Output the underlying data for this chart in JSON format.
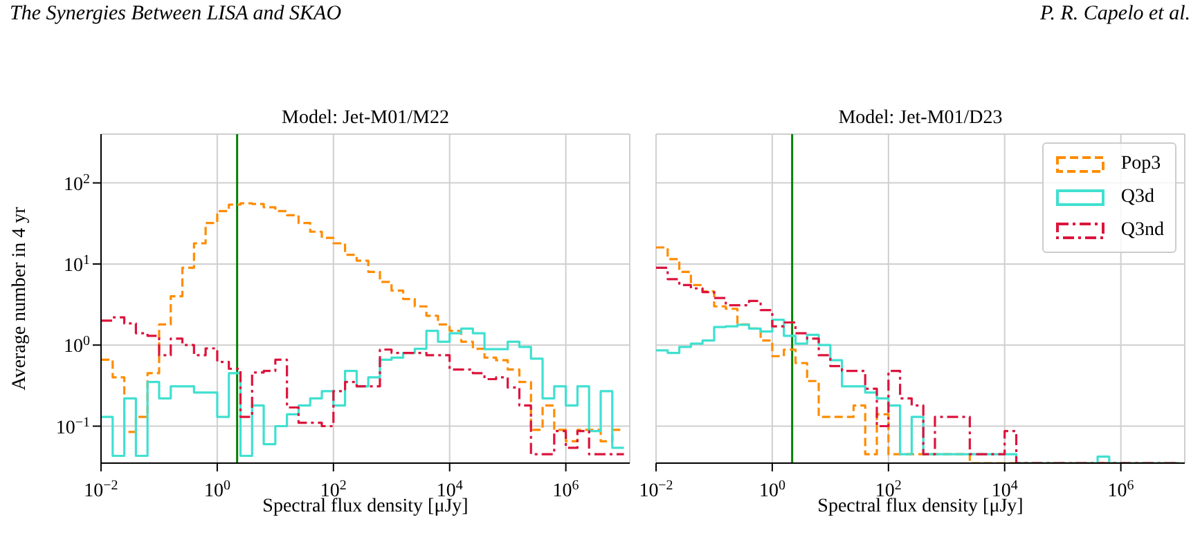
{
  "chart_data": [
    {
      "type": "histogram",
      "title": "Model: Jet-M01/M22",
      "xlabel": "Spectral flux density [μJy]",
      "ylabel": "Average number in 4 yr",
      "annotations": [
        "The Synergies Between LISA and SKAO"
      ],
      "bins": [
        0.01,
        0.01585,
        0.02512,
        0.03981,
        0.0631,
        0.1,
        0.1585,
        0.2512,
        0.3981,
        0.631,
        1,
        1.585,
        2.512,
        3.981,
        6.31,
        10,
        15.85,
        25.12,
        39.81,
        63.1,
        100,
        158.5,
        251.2,
        398.1,
        631,
        1000,
        1585,
        2512,
        3981,
        6310,
        10000,
        15850,
        25120,
        39810,
        63100,
        100000,
        158500,
        251200,
        398100,
        631000,
        1000000,
        1585000,
        2512000,
        3981000,
        6310000,
        10000000
      ],
      "series": [
        {
          "color": "#ff8c00",
          "line_style": "dashed",
          "values": [
            0.66,
            0.4,
            0.085,
            0.13,
            0.45,
            1.8,
            4,
            9,
            18,
            32,
            45,
            54,
            56,
            55,
            50,
            45,
            40,
            32,
            25,
            21,
            18,
            13,
            11,
            8,
            6,
            4.7,
            3.7,
            3,
            2.3,
            1.8,
            1.5,
            1.1,
            0.9,
            0.7,
            0.65,
            0.5,
            0.35,
            0.09,
            0.18,
            0.09,
            0.065,
            0.09,
            0.09,
            0.065,
            0.09
          ]
        },
        {
          "color": "#40e0d0",
          "line_style": "solid",
          "values": [
            0.13,
            0.043,
            0.22,
            0.043,
            0.35,
            0.22,
            0.31,
            0.31,
            0.26,
            0.26,
            0.13,
            0.45,
            0.043,
            0.18,
            0.06,
            0.1,
            0.14,
            0.18,
            0.22,
            0.27,
            0.18,
            0.48,
            0.31,
            0.4,
            0.66,
            0.7,
            0.8,
            0.9,
            1.5,
            1.1,
            1.4,
            1.6,
            1.4,
            0.89,
            0.89,
            1.1,
            0.95,
            0.68,
            0.22,
            0.31,
            0.18,
            0.31,
            0.087,
            0.27,
            0.054
          ]
        },
        {
          "color": "#dc143c",
          "line_style": "dashdot",
          "values": [
            2.0,
            2.2,
            1.85,
            1.4,
            1.3,
            0.75,
            1.2,
            1.0,
            0.75,
            0.91,
            0.62,
            0.51,
            0.13,
            0.46,
            0.48,
            0.66,
            0.17,
            0.11,
            0.11,
            0.1,
            0.27,
            0.35,
            0.31,
            0.31,
            0.88,
            0.8,
            0.8,
            0.8,
            0.75,
            0.75,
            0.5,
            0.5,
            0.45,
            0.38,
            0.4,
            0.3,
            0.18,
            0.045,
            0.045,
            0.087,
            0.054,
            0.087,
            0.045,
            0.045,
            0.045
          ]
        }
      ],
      "xlim": [
        0.01,
        12600000
      ],
      "ylim": [
        0.035,
        400
      ],
      "log": "xy",
      "grid": true,
      "legend": false,
      "xticks": [
        {
          "value": 0.01,
          "label": "10$^{−2}$"
        },
        {
          "value": 1,
          "label": "10$^{0}$"
        },
        {
          "value": 100,
          "label": "10$^{2}$"
        },
        {
          "value": 10000,
          "label": "10$^{4}$"
        },
        {
          "value": 1000000,
          "label": "10$^{6}$"
        }
      ],
      "yticks": [
        {
          "value": 0.1,
          "label": "10$^{−1}$"
        },
        {
          "value": 1,
          "label": "10$^{0}$"
        },
        {
          "value": 10,
          "label": "10$^{1}$"
        },
        {
          "value": 100,
          "label": "10$^{2}$"
        }
      ],
      "ref_lines": [
        {
          "axis": "x",
          "value": 2.2,
          "color": "#008000"
        }
      ]
    },
    {
      "type": "histogram",
      "title": "Model: Jet-M01/D23",
      "xlabel": "Spectral flux density [μJy]",
      "annotations": [
        "P. R. Capelo et al."
      ],
      "bins": [
        0.01,
        0.01585,
        0.02512,
        0.03981,
        0.0631,
        0.1,
        0.1585,
        0.2512,
        0.3981,
        0.631,
        1,
        1.585,
        2.512,
        3.981,
        6.31,
        10,
        15.85,
        25.12,
        39.81,
        63.1,
        100,
        158.5,
        251.2,
        398.1,
        631,
        1000,
        1585,
        2512,
        3981,
        6310,
        10000,
        15850,
        25120,
        39810,
        63100,
        100000,
        158500,
        251200,
        398100,
        631000,
        1000000,
        1585000,
        2512000,
        3981000,
        6310000,
        10000000
      ],
      "series": [
        {
          "name": "Pop3",
          "color": "#ff8c00",
          "line_style": "dashed",
          "values": [
            16,
            11.5,
            8,
            5.5,
            4.6,
            3,
            2.8,
            1.8,
            1.6,
            1.14,
            0.73,
            0.88,
            0.6,
            0.36,
            0.13,
            0.13,
            0.13,
            0.18,
            0.045,
            0.14,
            0.045,
            0.045,
            0.045,
            0.045,
            0.045,
            0.045,
            0.045,
            null,
            null,
            null,
            null,
            null,
            null,
            null,
            null,
            null,
            null,
            null,
            null,
            null,
            null,
            null,
            null,
            null,
            null
          ]
        },
        {
          "name": "Q3d",
          "color": "#40e0d0",
          "line_style": "solid",
          "values": [
            0.86,
            0.8,
            0.95,
            1.04,
            1.14,
            1.67,
            1.7,
            1.78,
            1.6,
            1.47,
            2.05,
            1.3,
            1.04,
            1.34,
            1.0,
            0.65,
            0.31,
            0.31,
            0.26,
            0.22,
            0.18,
            0.045,
            0.13,
            0.045,
            0.045,
            0.045,
            0.045,
            0.045,
            0.045,
            0.045,
            0.045,
            null,
            null,
            null,
            null,
            null,
            null,
            null,
            0.042,
            null,
            null,
            null,
            null,
            null,
            null
          ]
        },
        {
          "name": "Q3nd",
          "color": "#dc143c",
          "line_style": "dashdot",
          "values": [
            9,
            6.5,
            5.5,
            5.0,
            4.5,
            3.8,
            3.1,
            3.1,
            3.5,
            2.7,
            1.7,
            1.9,
            1.4,
            1.2,
            0.75,
            0.55,
            0.48,
            0.48,
            0.29,
            0.1,
            0.48,
            0.22,
            0.18,
            0.045,
            0.13,
            0.13,
            0.13,
            0.045,
            0.045,
            0.045,
            0.087,
            null,
            null,
            null,
            null,
            null,
            null,
            null,
            null,
            null,
            null,
            null,
            null,
            null,
            null
          ]
        }
      ],
      "xlim": [
        0.01,
        12600000
      ],
      "ylim": [
        0.035,
        400
      ],
      "log": "xy",
      "grid": true,
      "legend": "top right",
      "tick_labels": "x",
      "xticks": [
        {
          "value": 0.01,
          "label": "10$^{−2}$"
        },
        {
          "value": 1,
          "label": "10$^{0}$"
        },
        {
          "value": 100,
          "label": "10$^{2}$"
        },
        {
          "value": 10000,
          "label": "10$^{4}$"
        },
        {
          "value": 1000000,
          "label": "10$^{6}$"
        }
      ],
      "yticks": [
        {
          "value": 0.1,
          "label": null
        },
        {
          "value": 1,
          "label": null
        },
        {
          "value": 10,
          "label": null
        },
        {
          "value": 100,
          "label": null
        }
      ],
      "ref_lines": [
        {
          "axis": "x",
          "value": 2.2,
          "color": "#008000"
        }
      ]
    }
  ]
}
